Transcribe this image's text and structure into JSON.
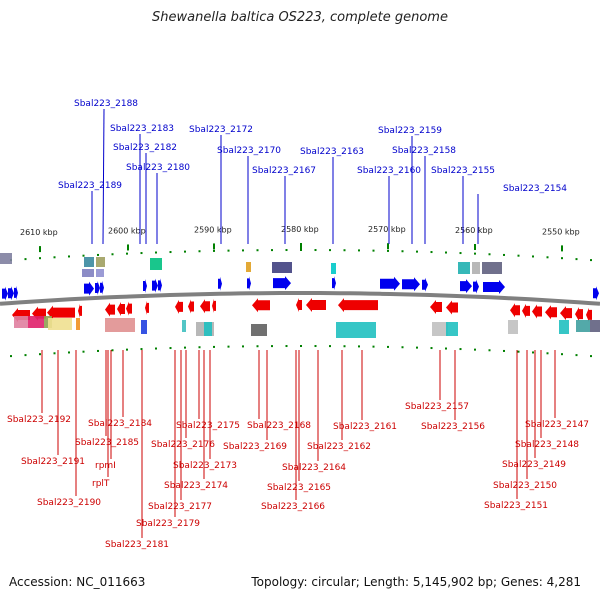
{
  "title": "Shewanella baltica OS223, complete genome",
  "accession_text": "Accession: NC_011663",
  "topology_text": "Topology: circular; Length: 5,145,902 bp; Genes: 4,281",
  "colors": {
    "top_label": "#0000cc",
    "bottom_label": "#cc0000",
    "forward_arrow": "#0000ee",
    "reverse_arrow": "#ee0000",
    "tick": "#008000",
    "backbone": "#808080"
  },
  "kbp_ticks": [
    "2610 kbp",
    "2600 kbp",
    "2590 kbp",
    "2580 kbp",
    "2570 kbp",
    "2560 kbp",
    "2550 kbp"
  ],
  "top_genes": [
    "Sbal223_2188",
    "Sbal223_2183",
    "Sbal223_2182",
    "Sbal223_2180",
    "Sbal223_2189",
    "Sbal223_2172",
    "Sbal223_2170",
    "Sbal223_2167",
    "Sbal223_2163",
    "Sbal223_2159",
    "Sbal223_2158",
    "Sbal223_2160",
    "Sbal223_2155",
    "Sbal223_2154"
  ],
  "bottom_genes": [
    "Sbal223_2192",
    "Sbal223_2191",
    "Sbal223_2190",
    "Sbal223_2185",
    "Sbal223_2184",
    "rpmI",
    "rplT",
    "Sbal223_2181",
    "Sbal223_2179",
    "Sbal223_2177",
    "Sbal223_2176",
    "Sbal223_2175",
    "Sbal223_2174",
    "Sbal223_2173",
    "Sbal223_2169",
    "Sbal223_2168",
    "Sbal223_2166",
    "Sbal223_2165",
    "Sbal223_2164",
    "Sbal223_2162",
    "Sbal223_2161",
    "Sbal223_2157",
    "Sbal223_2156",
    "Sbal223_2151",
    "Sbal223_2150",
    "Sbal223_2149",
    "Sbal223_2148",
    "Sbal223_2147"
  ]
}
